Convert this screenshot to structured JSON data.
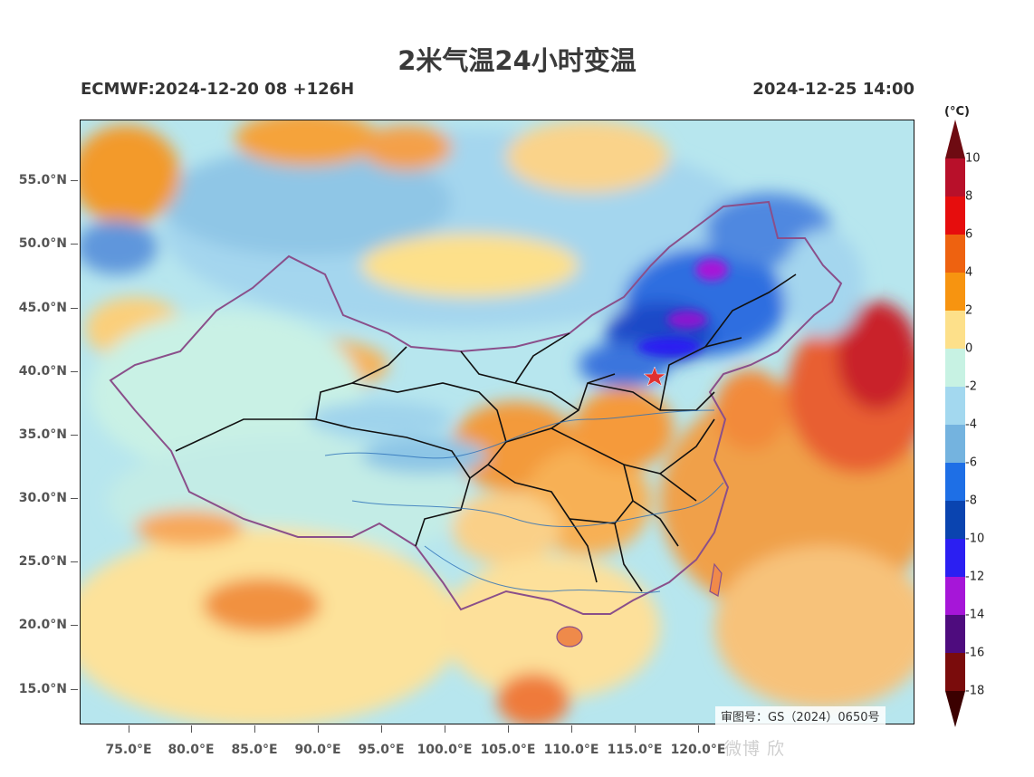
{
  "header": {
    "title": "2米气温24小时变温",
    "model_run": "ECMWF:2024-12-20 08 +126H",
    "valid_time": "2024-12-25 14:00"
  },
  "map": {
    "latitude_labels": [
      "55.0°N",
      "50.0°N",
      "45.0°N",
      "40.0°N",
      "35.0°N",
      "30.0°N",
      "25.0°N",
      "20.0°N",
      "15.0°N"
    ],
    "longitude_labels": [
      "75.0°E",
      "80.0°E",
      "85.0°E",
      "90.0°E",
      "95.0°E",
      "100.0°E",
      "105.0°E",
      "110.0°E",
      "115.0°E",
      "120.0°E"
    ],
    "approval_number": "审图号：GS（2024）0650号",
    "capital_marker": "star"
  },
  "colorbar": {
    "unit": "(°C)",
    "labels": [
      "10",
      "8",
      "6",
      "4",
      "2",
      "0",
      "-2",
      "-4",
      "-6",
      "-8",
      "-10",
      "-12",
      "-14",
      "-16",
      "-18"
    ],
    "colors": [
      "#6e0b12",
      "#b8102a",
      "#e60d0d",
      "#ee6210",
      "#f79410",
      "#fde08a",
      "#c7f2e3",
      "#a3d8ef",
      "#74b3df",
      "#1e6fe6",
      "#0a44b0",
      "#2b1ff2",
      "#a616d8",
      "#4e0c7e",
      "#7a0c0c",
      "#3b0000"
    ]
  },
  "watermark": "微博 欣"
}
